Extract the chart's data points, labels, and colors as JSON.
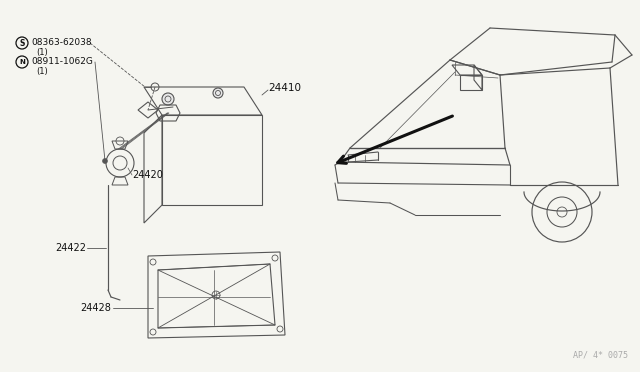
{
  "bg_color": "#f5f5f0",
  "line_color": "#555555",
  "dark_line": "#111111",
  "fig_width": 6.4,
  "fig_height": 3.72,
  "dpi": 100,
  "watermark": "AP/ 4* 0075",
  "labels": {
    "S_label": "S08363-62038",
    "S_sub": "(1)",
    "N_label": "N08911-1062G",
    "N_sub": "(1)",
    "p24410": "24410",
    "p24420": "24420",
    "p24422": "24422",
    "p24428": "24428"
  }
}
